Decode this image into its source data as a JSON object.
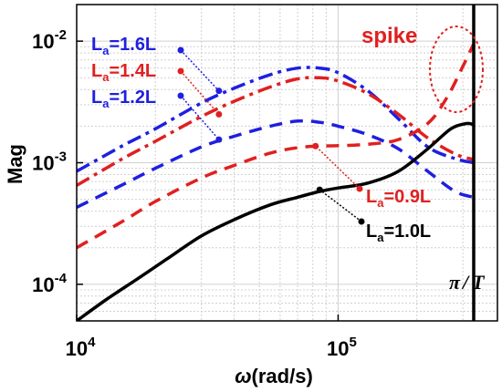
{
  "chart_data": {
    "type": "line",
    "xscale": "log",
    "yscale": "log",
    "xlim": [
      10000,
      330000
    ],
    "ylim": [
      5e-05,
      0.02
    ],
    "xlabel_symbol": "ω",
    "xlabel_units": "(rad/s)",
    "ylabel": "Mag",
    "grid": true,
    "xticks": [
      {
        "base": "10",
        "exp": "4",
        "value": 10000
      },
      {
        "base": "10",
        "exp": "5",
        "value": 100000
      }
    ],
    "yticks": [
      {
        "base": "10",
        "exp": "-2",
        "value": 0.01
      },
      {
        "base": "10",
        "exp": "-3",
        "value": 0.001
      },
      {
        "base": "10",
        "exp": "-4",
        "value": 0.0001
      }
    ],
    "series": [
      {
        "key": "s16",
        "color": "#1f1fe0",
        "style": "dashdot",
        "x": [
          10000,
          15000,
          20000,
          30000,
          40000,
          55000,
          70000,
          85000,
          100000,
          130000,
          170000,
          220000,
          280000,
          330000
        ],
        "y": [
          0.00085,
          0.00138,
          0.0019,
          0.0031,
          0.0041,
          0.0053,
          0.006,
          0.006,
          0.0055,
          0.0039,
          0.0023,
          0.00135,
          0.00108,
          0.001
        ]
      },
      {
        "key": "s14",
        "color": "#e02020",
        "style": "dashdot",
        "x": [
          10000,
          15000,
          20000,
          30000,
          40000,
          55000,
          70000,
          85000,
          100000,
          130000,
          170000,
          220000,
          280000,
          330000
        ],
        "y": [
          0.00065,
          0.00108,
          0.0015,
          0.0024,
          0.0032,
          0.0042,
          0.0049,
          0.005,
          0.0047,
          0.0037,
          0.0025,
          0.0016,
          0.00118,
          0.00106
        ]
      },
      {
        "key": "s12",
        "color": "#1f1fe0",
        "style": "dashed",
        "x": [
          10000,
          15000,
          20000,
          30000,
          40000,
          55000,
          70000,
          85000,
          100000,
          130000,
          170000,
          220000,
          280000,
          330000
        ],
        "y": [
          0.00043,
          0.00066,
          0.0009,
          0.00135,
          0.00165,
          0.002,
          0.0022,
          0.00215,
          0.002,
          0.0017,
          0.0013,
          0.00085,
          0.00058,
          0.00052
        ]
      },
      {
        "key": "s09",
        "color": "#e02020",
        "style": "dashed",
        "x": [
          10000,
          15000,
          20000,
          30000,
          40000,
          55000,
          70000,
          85000,
          100000,
          130000,
          170000,
          220000,
          260000,
          300000,
          330000
        ],
        "y": [
          0.0002,
          0.00033,
          0.00048,
          0.00075,
          0.00095,
          0.0012,
          0.00133,
          0.00137,
          0.00138,
          0.00142,
          0.00155,
          0.0021,
          0.0034,
          0.0062,
          0.0095
        ]
      },
      {
        "key": "s10",
        "color": "#000000",
        "style": "solid",
        "x": [
          10000,
          13000,
          17000,
          22000,
          30000,
          40000,
          55000,
          70000,
          85000,
          100000,
          130000,
          170000,
          220000,
          270000,
          310000,
          330000
        ],
        "y": [
          5e-05,
          7.5e-05,
          0.00011,
          0.00016,
          0.00025,
          0.00034,
          0.00045,
          0.00052,
          0.00058,
          0.00062,
          0.00068,
          0.00085,
          0.0013,
          0.0019,
          0.0021,
          0.00205
        ]
      }
    ],
    "labels": [
      {
        "key": "s16",
        "color": "#1f1fe0",
        "main": "L",
        "sub": "a",
        "rest": "=1.6L",
        "point": [
          35000,
          0.0039
        ]
      },
      {
        "key": "s14",
        "color": "#e02020",
        "main": "L",
        "sub": "a",
        "rest": "=1.4L",
        "point": [
          35000,
          0.0025
        ]
      },
      {
        "key": "s12",
        "color": "#1f1fe0",
        "main": "L",
        "sub": "a",
        "rest": "=1.2L",
        "point": [
          35000,
          0.00155
        ]
      },
      {
        "key": "s09",
        "color": "#e02020",
        "main": "L",
        "sub": "a",
        "rest": "=0.9L",
        "point": [
          82000,
          0.00137
        ]
      },
      {
        "key": "s10",
        "color": "#000000",
        "main": "L",
        "sub": "a",
        "rest": "=1.0L",
        "point": [
          85000,
          0.0006
        ]
      }
    ],
    "annotations": {
      "spike": {
        "text": "spike",
        "color": "#e02020"
      },
      "limit": {
        "text": "π/T",
        "x": 330000
      }
    }
  }
}
